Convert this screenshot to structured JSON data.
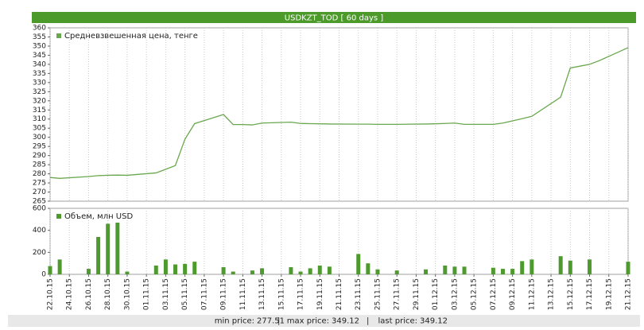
{
  "header": {
    "title": "USDKZT_TOD [ 60 days ]"
  },
  "chart_data": [
    {
      "type": "line",
      "ylim": [
        265,
        360
      ],
      "yticks": [
        265,
        270,
        275,
        280,
        285,
        290,
        295,
        300,
        305,
        310,
        315,
        320,
        325,
        330,
        335,
        340,
        345,
        350,
        355,
        360
      ],
      "legend": "top-left",
      "grid": true,
      "series": [
        {
          "name": "Средневзвешенная цена, тенге",
          "color": "#6aa84f",
          "x": [
            "22.10.15",
            "23.10.15",
            "26.10.15",
            "27.10.15",
            "28.10.15",
            "29.10.15",
            "30.10.15",
            "02.11.15",
            "03.11.15",
            "04.11.15",
            "05.11.15",
            "06.11.15",
            "09.11.15",
            "10.11.15",
            "11.11.15",
            "12.11.15",
            "13.11.15",
            "16.11.15",
            "17.11.15",
            "18.11.15",
            "19.11.15",
            "20.11.15",
            "23.11.15",
            "24.11.15",
            "25.11.15",
            "26.11.15",
            "27.11.15",
            "30.11.15",
            "01.12.15",
            "02.12.15",
            "03.12.15",
            "04.12.15",
            "07.12.15",
            "08.12.15",
            "09.12.15",
            "10.12.15",
            "11.12.15",
            "14.12.15",
            "15.12.15",
            "16.12.15",
            "17.12.15",
            "18.12.15",
            "21.12.15"
          ],
          "values": [
            278,
            277.51,
            278.5,
            279,
            279.2,
            279.3,
            279.2,
            280.5,
            282.5,
            284.5,
            299,
            307.5,
            312.5,
            307,
            307,
            306.8,
            307.8,
            308.3,
            307.6,
            307.5,
            307.4,
            307.3,
            307.2,
            307.2,
            307.1,
            307.1,
            307.1,
            307.3,
            307.4,
            307.6,
            307.8,
            307.1,
            307.1,
            307.8,
            309,
            310.2,
            311.5,
            322,
            338,
            339,
            340,
            342,
            349.12
          ]
        }
      ]
    },
    {
      "type": "bar",
      "ylim": [
        0,
        600
      ],
      "yticks": [
        0,
        200,
        400,
        600
      ],
      "xlim": [
        "22.10.15",
        "21.12.15"
      ],
      "xticks": [
        "22.10.15",
        "24.10.15",
        "26.10.15",
        "28.10.15",
        "30.10.15",
        "01.11.15",
        "03.11.15",
        "05.11.15",
        "07.11.15",
        "09.11.15",
        "11.11.15",
        "13.11.15",
        "15.11.15",
        "17.11.15",
        "19.11.15",
        "21.11.15",
        "23.11.15",
        "25.11.15",
        "27.11.15",
        "29.11.15",
        "01.12.15",
        "03.12.15",
        "05.12.15",
        "07.12.15",
        "09.12.15",
        "11.12.15",
        "13.12.15",
        "15.12.15",
        "17.12.15",
        "19.12.15",
        "21.12.15"
      ],
      "legend": "top-left",
      "grid": true,
      "series": [
        {
          "name": "Объем, млн USD",
          "color": "#4e9a2e",
          "x": [
            "22.10.15",
            "23.10.15",
            "26.10.15",
            "27.10.15",
            "28.10.15",
            "29.10.15",
            "30.10.15",
            "02.11.15",
            "03.11.15",
            "04.11.15",
            "05.11.15",
            "06.11.15",
            "09.11.15",
            "10.11.15",
            "12.11.15",
            "13.11.15",
            "16.11.15",
            "17.11.15",
            "18.11.15",
            "19.11.15",
            "20.11.15",
            "23.11.15",
            "24.11.15",
            "25.11.15",
            "27.11.15",
            "30.11.15",
            "02.12.15",
            "03.12.15",
            "04.12.15",
            "07.12.15",
            "08.12.15",
            "09.12.15",
            "10.12.15",
            "11.12.15",
            "14.12.15",
            "15.12.15",
            "17.12.15",
            "21.12.15"
          ],
          "values": [
            75,
            135,
            50,
            340,
            460,
            470,
            25,
            80,
            135,
            90,
            95,
            115,
            65,
            25,
            35,
            55,
            65,
            25,
            55,
            80,
            70,
            185,
            100,
            45,
            35,
            45,
            80,
            70,
            70,
            60,
            50,
            50,
            120,
            135,
            165,
            125,
            135,
            115
          ]
        }
      ]
    }
  ],
  "footer": {
    "min_label": "min price:",
    "min_price": 277.51,
    "max_label": "max price:",
    "max_price": 349.12,
    "last_label": "last price:",
    "last_price": 349.12
  }
}
